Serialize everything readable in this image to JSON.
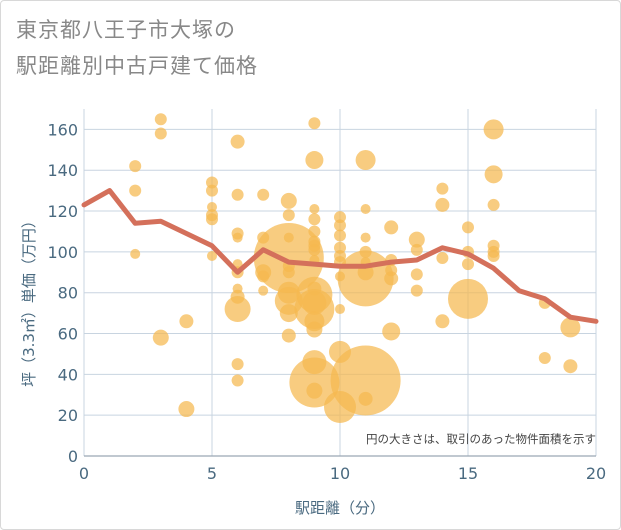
{
  "title_line1": "東京都八王子市大塚の",
  "title_line2": "駅距離別中古戸建て価格",
  "chart_data": {
    "type": "scatter",
    "title": "東京都八王子市大塚の駅距離別中古戸建て価格",
    "xlabel": "駅距離（分）",
    "ylabel": "坪（3.3㎡）単価（万円）",
    "annotation": "円の大きさは、取引のあった物件面積を示す",
    "xlim": [
      0,
      20
    ],
    "ylim": [
      0,
      170
    ],
    "xticks": [
      0,
      5,
      10,
      15,
      20
    ],
    "yticks": [
      0,
      20,
      40,
      60,
      80,
      100,
      120,
      140,
      160
    ],
    "grid": true,
    "colors": {
      "bubble": "#f5b94f",
      "line": "#d4705b",
      "axis_text": "#4a6a80",
      "grid": "#c8d4e0"
    },
    "series": [
      {
        "type": "bubble",
        "points": [
          {
            "x": 2,
            "y": 142,
            "size": 6
          },
          {
            "x": 2,
            "y": 130,
            "size": 6
          },
          {
            "x": 2,
            "y": 99,
            "size": 5
          },
          {
            "x": 3,
            "y": 165,
            "size": 6
          },
          {
            "x": 3,
            "y": 158,
            "size": 6
          },
          {
            "x": 3,
            "y": 58,
            "size": 8
          },
          {
            "x": 4,
            "y": 66,
            "size": 7
          },
          {
            "x": 4,
            "y": 23,
            "size": 8
          },
          {
            "x": 5,
            "y": 134,
            "size": 6
          },
          {
            "x": 5,
            "y": 130,
            "size": 6
          },
          {
            "x": 5,
            "y": 122,
            "size": 5
          },
          {
            "x": 5,
            "y": 118,
            "size": 6
          },
          {
            "x": 5,
            "y": 116,
            "size": 6
          },
          {
            "x": 5,
            "y": 98,
            "size": 5
          },
          {
            "x": 6,
            "y": 154,
            "size": 7
          },
          {
            "x": 6,
            "y": 128,
            "size": 6
          },
          {
            "x": 6,
            "y": 109,
            "size": 6
          },
          {
            "x": 6,
            "y": 107,
            "size": 5
          },
          {
            "x": 6,
            "y": 94,
            "size": 5
          },
          {
            "x": 6,
            "y": 90,
            "size": 6
          },
          {
            "x": 6,
            "y": 82,
            "size": 5
          },
          {
            "x": 6,
            "y": 78,
            "size": 7
          },
          {
            "x": 6,
            "y": 72,
            "size": 13
          },
          {
            "x": 6,
            "y": 45,
            "size": 6
          },
          {
            "x": 6,
            "y": 37,
            "size": 6
          },
          {
            "x": 7,
            "y": 128,
            "size": 6
          },
          {
            "x": 7,
            "y": 107,
            "size": 6
          },
          {
            "x": 7,
            "y": 90,
            "size": 8
          },
          {
            "x": 7,
            "y": 88,
            "size": 6
          },
          {
            "x": 7,
            "y": 81,
            "size": 5
          },
          {
            "x": 8,
            "y": 125,
            "size": 8
          },
          {
            "x": 8,
            "y": 118,
            "size": 6
          },
          {
            "x": 8,
            "y": 107,
            "size": 5
          },
          {
            "x": 8,
            "y": 97,
            "size": 35
          },
          {
            "x": 8,
            "y": 93,
            "size": 6
          },
          {
            "x": 8,
            "y": 90,
            "size": 6
          },
          {
            "x": 8,
            "y": 80,
            "size": 11
          },
          {
            "x": 8,
            "y": 76,
            "size": 14
          },
          {
            "x": 8,
            "y": 70,
            "size": 9
          },
          {
            "x": 8,
            "y": 59,
            "size": 7
          },
          {
            "x": 9,
            "y": 163,
            "size": 6
          },
          {
            "x": 9,
            "y": 145,
            "size": 9
          },
          {
            "x": 9,
            "y": 121,
            "size": 5
          },
          {
            "x": 9,
            "y": 116,
            "size": 6
          },
          {
            "x": 9,
            "y": 110,
            "size": 6
          },
          {
            "x": 9,
            "y": 105,
            "size": 6
          },
          {
            "x": 9,
            "y": 103,
            "size": 6
          },
          {
            "x": 9,
            "y": 101,
            "size": 6
          },
          {
            "x": 9,
            "y": 96,
            "size": 5
          },
          {
            "x": 9,
            "y": 82,
            "size": 7
          },
          {
            "x": 9,
            "y": 79,
            "size": 18
          },
          {
            "x": 9,
            "y": 75,
            "size": 12
          },
          {
            "x": 9,
            "y": 72,
            "size": 20
          },
          {
            "x": 9,
            "y": 66,
            "size": 10
          },
          {
            "x": 9,
            "y": 62,
            "size": 8
          },
          {
            "x": 9,
            "y": 46,
            "size": 12
          },
          {
            "x": 9,
            "y": 36,
            "size": 25
          },
          {
            "x": 9,
            "y": 32,
            "size": 8
          },
          {
            "x": 10,
            "y": 117,
            "size": 6
          },
          {
            "x": 10,
            "y": 113,
            "size": 6
          },
          {
            "x": 10,
            "y": 108,
            "size": 6
          },
          {
            "x": 10,
            "y": 102,
            "size": 6
          },
          {
            "x": 10,
            "y": 98,
            "size": 6
          },
          {
            "x": 10,
            "y": 95,
            "size": 6
          },
          {
            "x": 10,
            "y": 88,
            "size": 5
          },
          {
            "x": 10,
            "y": 72,
            "size": 5
          },
          {
            "x": 10,
            "y": 51,
            "size": 11
          },
          {
            "x": 10,
            "y": 24,
            "size": 16
          },
          {
            "x": 11,
            "y": 145,
            "size": 10
          },
          {
            "x": 11,
            "y": 121,
            "size": 5
          },
          {
            "x": 11,
            "y": 107,
            "size": 5
          },
          {
            "x": 11,
            "y": 100,
            "size": 6
          },
          {
            "x": 11,
            "y": 95,
            "size": 5
          },
          {
            "x": 11,
            "y": 90,
            "size": 8
          },
          {
            "x": 11,
            "y": 87,
            "size": 28
          },
          {
            "x": 11,
            "y": 37,
            "size": 35
          },
          {
            "x": 11,
            "y": 28,
            "size": 7
          },
          {
            "x": 12,
            "y": 112,
            "size": 7
          },
          {
            "x": 12,
            "y": 96,
            "size": 6
          },
          {
            "x": 12,
            "y": 91,
            "size": 6
          },
          {
            "x": 12,
            "y": 87,
            "size": 7
          },
          {
            "x": 12,
            "y": 61,
            "size": 9
          },
          {
            "x": 13,
            "y": 106,
            "size": 8
          },
          {
            "x": 13,
            "y": 101,
            "size": 6
          },
          {
            "x": 13,
            "y": 89,
            "size": 6
          },
          {
            "x": 13,
            "y": 81,
            "size": 6
          },
          {
            "x": 14,
            "y": 131,
            "size": 6
          },
          {
            "x": 14,
            "y": 123,
            "size": 7
          },
          {
            "x": 14,
            "y": 97,
            "size": 6
          },
          {
            "x": 14,
            "y": 66,
            "size": 7
          },
          {
            "x": 15,
            "y": 112,
            "size": 6
          },
          {
            "x": 15,
            "y": 100,
            "size": 6
          },
          {
            "x": 15,
            "y": 94,
            "size": 6
          },
          {
            "x": 15,
            "y": 77,
            "size": 20
          },
          {
            "x": 16,
            "y": 160,
            "size": 10
          },
          {
            "x": 16,
            "y": 138,
            "size": 9
          },
          {
            "x": 16,
            "y": 123,
            "size": 6
          },
          {
            "x": 16,
            "y": 103,
            "size": 6
          },
          {
            "x": 16,
            "y": 100,
            "size": 6
          },
          {
            "x": 16,
            "y": 98,
            "size": 6
          },
          {
            "x": 18,
            "y": 75,
            "size": 6
          },
          {
            "x": 18,
            "y": 48,
            "size": 6
          },
          {
            "x": 19,
            "y": 63,
            "size": 10
          },
          {
            "x": 19,
            "y": 44,
            "size": 7
          }
        ]
      },
      {
        "type": "line",
        "x": [
          0,
          1,
          2,
          3,
          4,
          5,
          6,
          7,
          8,
          9,
          10,
          11,
          12,
          13,
          14,
          15,
          16,
          17,
          18,
          19,
          20
        ],
        "y": [
          123,
          130,
          114,
          115,
          109,
          103,
          90,
          101,
          95,
          94,
          93,
          93,
          95,
          96,
          102,
          99,
          92,
          81,
          77,
          68,
          66
        ]
      }
    ]
  }
}
